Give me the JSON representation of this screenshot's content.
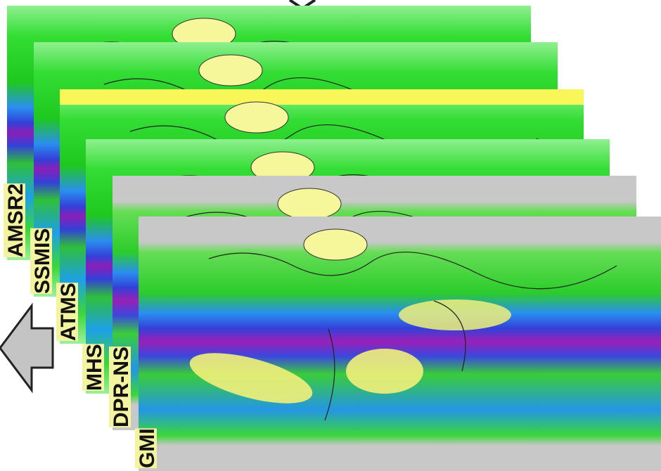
{
  "layers": [
    {
      "label": "AMSR2"
    },
    {
      "label": "SSMIS"
    },
    {
      "label": "ATMS"
    },
    {
      "label": "MHS"
    },
    {
      "label": "DPR-NS"
    },
    {
      "label": "GMI"
    }
  ]
}
